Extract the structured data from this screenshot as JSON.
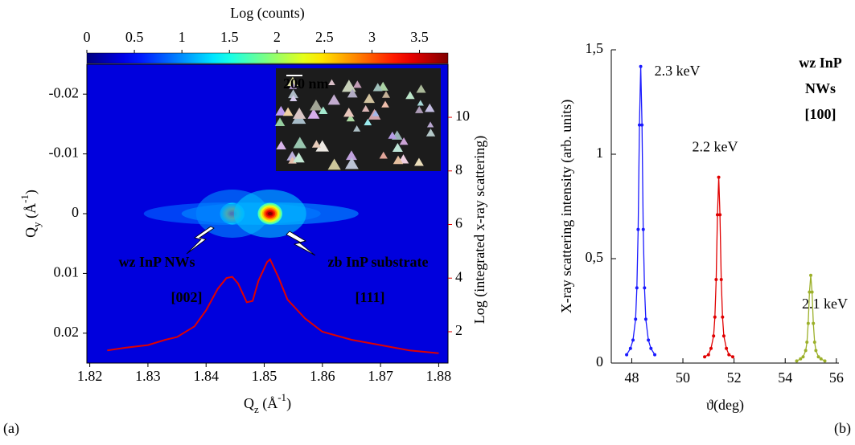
{
  "chart_data": [
    {
      "type": "heatmap",
      "colorbar_title": "Log (counts)",
      "colormap": "jet",
      "clim": [
        0,
        3.8
      ],
      "cticks": [
        0,
        0.5,
        1,
        1.5,
        2,
        2.5,
        3,
        3.5
      ],
      "xlabel": [
        "Q",
        "z",
        " (Å",
        "-1",
        ")"
      ],
      "ylabel": [
        "Q",
        "y",
        " (Å",
        "-1",
        ")"
      ],
      "y2label": "Log (integrated x-ray scattering)",
      "xlim": [
        1.8195,
        1.8816
      ],
      "xticks": [
        1.82,
        1.83,
        1.84,
        1.85,
        1.86,
        1.87,
        1.88
      ],
      "ylim": [
        -0.025,
        0.025
      ],
      "y_axis_inverted": true,
      "yticks": [
        -0.02,
        -0.01,
        0,
        0.01,
        0.02
      ],
      "y2lim": [
        0.83,
        11.98
      ],
      "y2ticks": [
        2,
        4,
        6,
        8,
        10
      ],
      "background_value": 0.35,
      "spots": [
        {
          "x": 1.8445,
          "y": 0,
          "value": 3.0
        },
        {
          "x": 1.851,
          "y": 0,
          "value": 3.8
        }
      ],
      "overlay": {
        "axis": "y2",
        "color": "#e00000",
        "x": [
          1.823,
          1.826,
          1.83,
          1.833,
          1.835,
          1.838,
          1.84,
          1.842,
          1.8435,
          1.8445,
          1.8455,
          1.847,
          1.848,
          1.849,
          1.8505,
          1.851,
          1.8525,
          1.854,
          1.857,
          1.86,
          1.865,
          1.87,
          1.875,
          1.88
        ],
        "values": [
          1.3,
          1.4,
          1.5,
          1.7,
          1.8,
          2.2,
          2.8,
          3.6,
          4.0,
          4.05,
          3.8,
          3.1,
          3.15,
          3.9,
          4.6,
          4.7,
          4.0,
          3.2,
          2.5,
          2.0,
          1.7,
          1.5,
          1.3,
          1.2
        ]
      },
      "annotations": [
        "wz InP NWs",
        "[002]",
        "zb InP substrate",
        "[111]"
      ],
      "inset_scale_label": "200 nm",
      "panel_label": "(a)"
    },
    {
      "type": "line",
      "xlabel": "ϑ(deg)",
      "ylabel": "X-ray scattering intensity (arb. units)",
      "xlim": [
        47.2,
        56.1
      ],
      "xticks": [
        48,
        50,
        52,
        54,
        56
      ],
      "ylim": [
        0,
        1.5
      ],
      "yticks": [
        0,
        {
          "value": 0.5,
          "label": "0,5"
        },
        1,
        {
          "value": 1.5,
          "label": "1,5"
        }
      ],
      "series": [
        {
          "name": "2.3 keV",
          "color": "#1a1aff",
          "x": [
            47.8,
            47.95,
            48.05,
            48.15,
            48.2,
            48.25,
            48.3,
            48.35,
            48.4,
            48.45,
            48.5,
            48.55,
            48.65,
            48.75,
            48.9
          ],
          "values": [
            0.04,
            0.07,
            0.11,
            0.21,
            0.36,
            0.64,
            1.14,
            1.42,
            1.14,
            0.64,
            0.36,
            0.21,
            0.11,
            0.07,
            0.04
          ]
        },
        {
          "name": "2.2 keV",
          "color": "#e00000",
          "x": [
            50.85,
            51.0,
            51.1,
            51.2,
            51.25,
            51.3,
            51.35,
            51.4,
            51.45,
            51.5,
            51.55,
            51.6,
            51.7,
            51.8,
            51.95
          ],
          "values": [
            0.03,
            0.04,
            0.07,
            0.13,
            0.22,
            0.4,
            0.71,
            0.89,
            0.71,
            0.4,
            0.22,
            0.13,
            0.07,
            0.04,
            0.03
          ]
        },
        {
          "name": "2.1 keV",
          "color": "#9cb02a",
          "x": [
            54.45,
            54.6,
            54.7,
            54.8,
            54.85,
            54.9,
            54.95,
            55.0,
            55.05,
            55.1,
            55.15,
            55.2,
            55.3,
            55.4,
            55.55
          ],
          "values": [
            0.01,
            0.02,
            0.03,
            0.06,
            0.1,
            0.19,
            0.34,
            0.42,
            0.34,
            0.19,
            0.1,
            0.06,
            0.03,
            0.02,
            0.01
          ]
        }
      ],
      "annotation": [
        "wz InP",
        "NWs",
        "[100]"
      ],
      "panel_label": "(b)"
    }
  ]
}
